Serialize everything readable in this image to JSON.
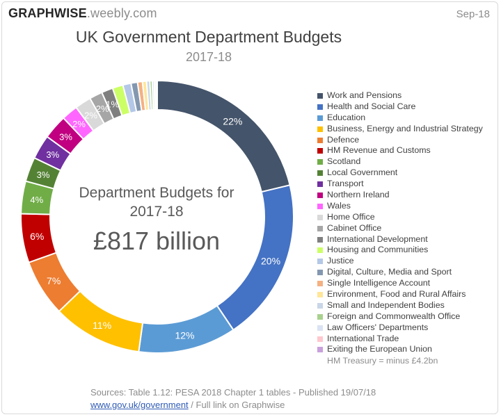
{
  "header": {
    "brand_bold": "GRAPHWISE",
    "brand_light": ".weebly.com",
    "date": "Sep-18"
  },
  "center": {
    "line1": "Department Budgets for",
    "line2": "2017-18",
    "total": "£817 billion"
  },
  "footer": {
    "sources": "Sources: Table 1.12: PESA 2018 Chapter 1 tables - Published 19/07/18",
    "link_text": "www.gov.uk/government",
    "link_suffix": " / Full link on Graphwise"
  },
  "chart_data": {
    "type": "pie",
    "title": "UK Government Department Budgets",
    "subtitle": "2017-18",
    "legend_position": "right",
    "series": [
      {
        "name": "Work and Pensions",
        "value": 22,
        "label": "22%",
        "color": "#44546a"
      },
      {
        "name": "Health and Social Care",
        "value": 20,
        "label": "20%",
        "color": "#4472c4"
      },
      {
        "name": "Education",
        "value": 12,
        "label": "12%",
        "color": "#5b9bd5"
      },
      {
        "name": "Business, Energy and Industrial Strategy",
        "value": 11,
        "label": "11%",
        "color": "#ffc000"
      },
      {
        "name": "Defence",
        "value": 7,
        "label": "7%",
        "color": "#ed7d31"
      },
      {
        "name": "HM Revenue and Customs",
        "value": 6,
        "label": "6%",
        "color": "#c00000"
      },
      {
        "name": "Scotland",
        "value": 4,
        "label": "4%",
        "color": "#70ad47"
      },
      {
        "name": "Local Government",
        "value": 3,
        "label": "3%",
        "color": "#548235"
      },
      {
        "name": "Transport",
        "value": 3,
        "label": "3%",
        "color": "#7030a0"
      },
      {
        "name": "Northern Ireland",
        "value": 3,
        "label": "3%",
        "color": "#c00080"
      },
      {
        "name": "Wales",
        "value": 2,
        "label": "2%",
        "color": "#ff66ff"
      },
      {
        "name": "Home Office",
        "value": 2,
        "label": "2%",
        "color": "#d9d9d9"
      },
      {
        "name": "Cabinet Office",
        "value": 1.6,
        "label": "2%",
        "color": "#a6a6a6"
      },
      {
        "name": "International Development",
        "value": 1.4,
        "label": "1%",
        "color": "#7f7f7f"
      },
      {
        "name": "Housing and Communities",
        "value": 1.3,
        "label": "",
        "color": "#ccff66"
      },
      {
        "name": "Justice",
        "value": 1,
        "label": "",
        "color": "#b4c7e7"
      },
      {
        "name": "Digital, Culture, Media and Sport",
        "value": 0.8,
        "label": "",
        "color": "#8497b0"
      },
      {
        "name": "Single Intelligence Account",
        "value": 0.6,
        "label": "",
        "color": "#f4b183"
      },
      {
        "name": "Environment, Food and Rural Affairs",
        "value": 0.5,
        "label": "",
        "color": "#ffe699"
      },
      {
        "name": "Small and Independent Bodies",
        "value": 0.4,
        "label": "",
        "color": "#c9d6e8"
      },
      {
        "name": "Foreign and Commonwealth Office",
        "value": 0.3,
        "label": "",
        "color": "#a9d18e"
      },
      {
        "name": "Law Officers' Departments",
        "value": 0.25,
        "label": "",
        "color": "#dae3f3"
      },
      {
        "name": "International Trade",
        "value": 0.2,
        "label": "",
        "color": "#ffc7ce"
      },
      {
        "name": "Exiting the European Union",
        "value": 0.15,
        "label": "",
        "color": "#c9a0dc"
      }
    ],
    "note": "HM Treasury = minus £4.2bn"
  }
}
